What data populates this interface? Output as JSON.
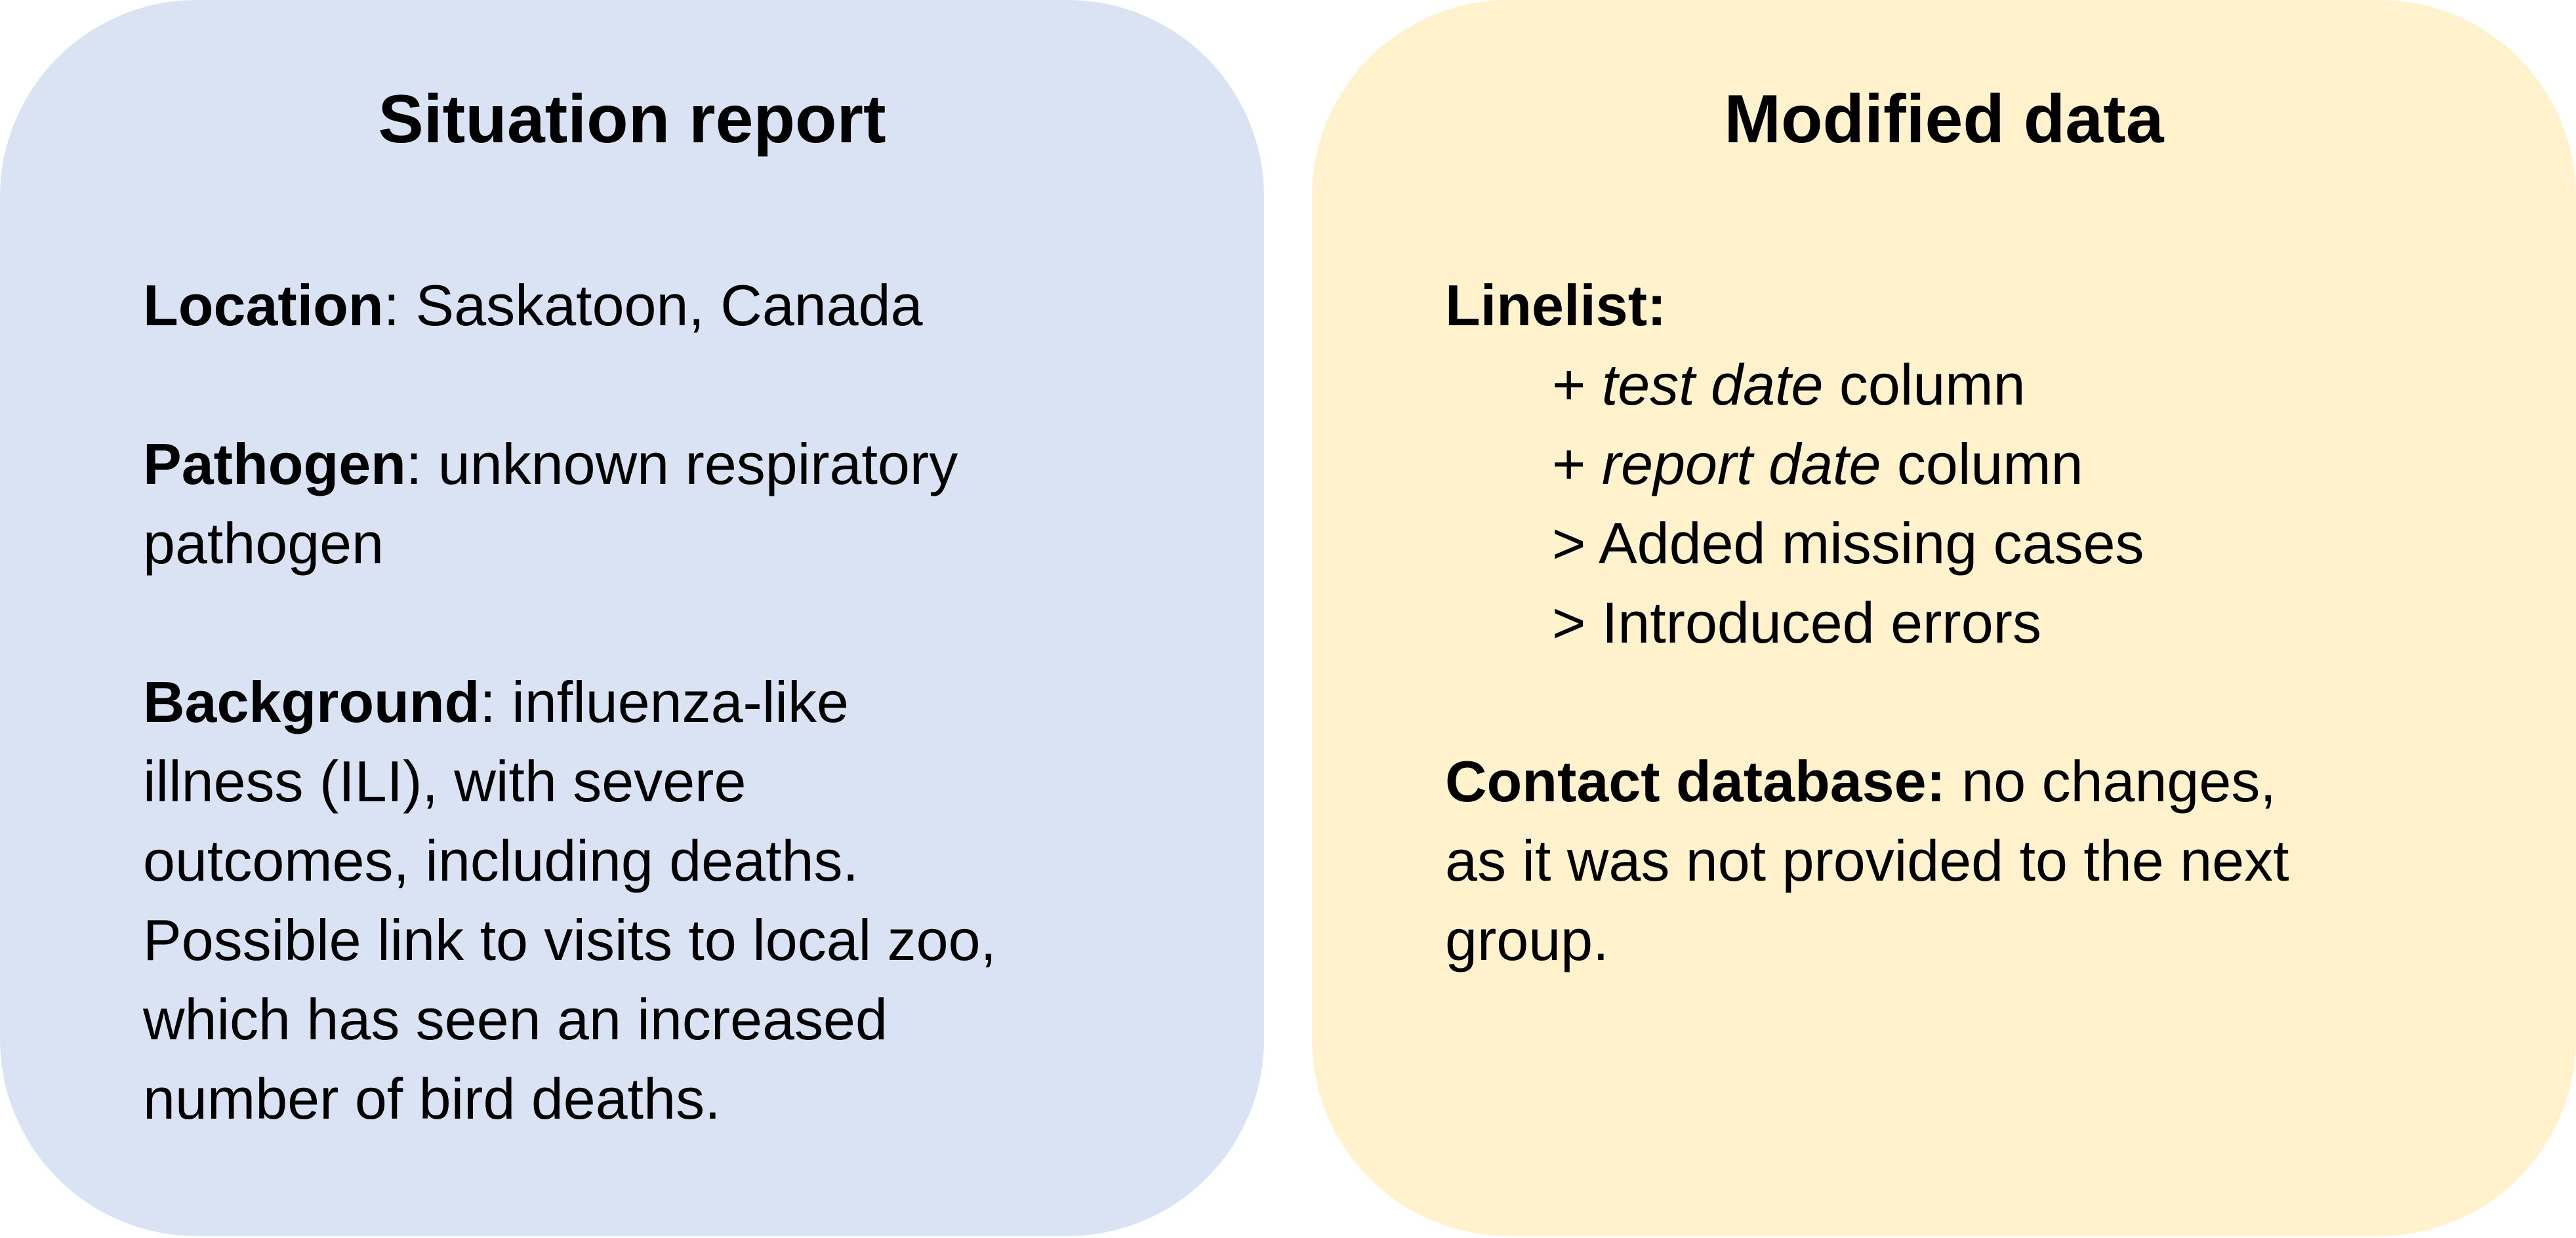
{
  "situation_report": {
    "title": "Situation report",
    "location": {
      "label": "Location",
      "value": ": Saskatoon, Canada"
    },
    "pathogen": {
      "label": "Pathogen",
      "value_line1": ": unknown respiratory",
      "value_line2": "pathogen"
    },
    "background": {
      "label": "Background",
      "value_line1": ": influenza-like",
      "lines": [
        "illness (ILI), with severe",
        "outcomes, including deaths.",
        "Possible link to visits to local zoo,",
        "which has seen an increased",
        "number of bird deaths."
      ]
    }
  },
  "modified_data": {
    "title": "Modified data",
    "linelist": {
      "label": "Linelist:",
      "items": [
        {
          "prefix": "+ ",
          "italic": "test date",
          "suffix": " column"
        },
        {
          "prefix": "+ ",
          "italic": "report date",
          "suffix": " column"
        },
        {
          "text": "> Added missing cases"
        },
        {
          "text": "> Introduced errors"
        }
      ]
    },
    "contact_database": {
      "label": "Contact database:",
      "value_line1": " no changes,",
      "value_line2": "as it was not provided to the next",
      "value_line3": "group."
    }
  }
}
